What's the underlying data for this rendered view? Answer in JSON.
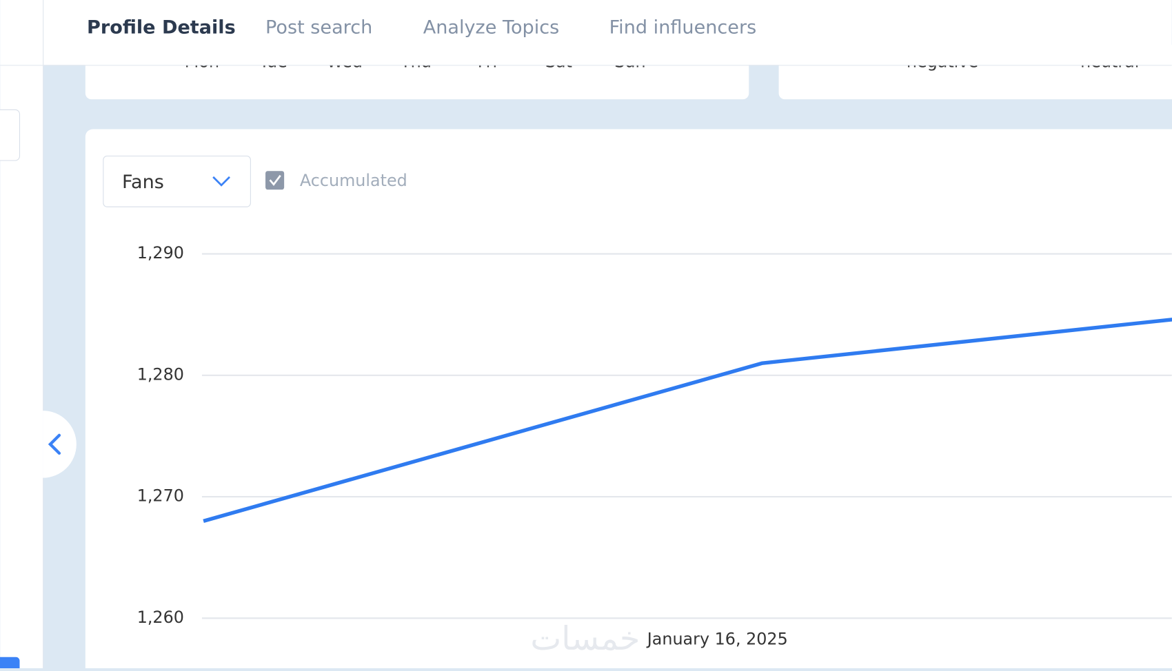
{
  "nav": {
    "tabs": [
      "Profile Details",
      "Post search",
      "Analyze Topics",
      "Find influencers"
    ]
  },
  "weekday_chart": {
    "categories": [
      "Mon",
      "Tue",
      "Wed",
      "Thu",
      "Fri",
      "Sat",
      "Sun"
    ]
  },
  "sentiment_chart": {
    "categories": [
      "negative",
      "neutral"
    ]
  },
  "controls": {
    "metric": "Fans",
    "accumulated_label": "Accumulated"
  },
  "chart_data": {
    "type": "line",
    "categories": [
      null,
      "January 16, 2025",
      null
    ],
    "values": [
      1268,
      1281,
      1285.9
    ],
    "color": "#2f7bf0",
    "ylim": [
      1260,
      1290
    ],
    "yticks": [
      {
        "value": 1260,
        "label": "1,260"
      },
      {
        "value": 1270,
        "label": "1,270"
      },
      {
        "value": 1280,
        "label": "1,280"
      },
      {
        "value": 1290,
        "label": "1,290"
      }
    ],
    "grid": true
  },
  "watermark": "خمسات"
}
